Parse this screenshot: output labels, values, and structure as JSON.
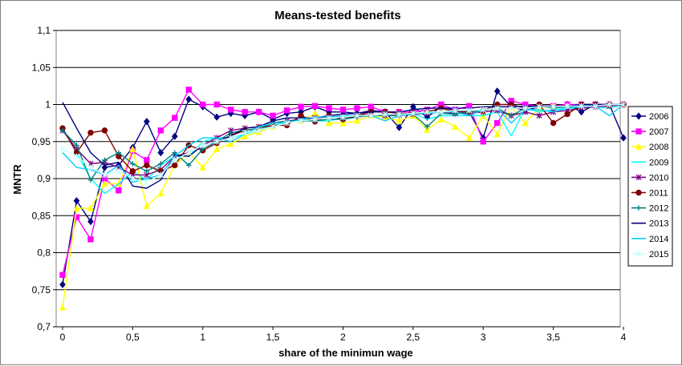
{
  "chart_data": {
    "type": "line",
    "title": "Means-tested benefits",
    "xlabel": "share of the minimun wage",
    "ylabel": "MNTR",
    "xlim": [
      0,
      4
    ],
    "ylim": [
      0.7,
      1.1
    ],
    "x_ticks": [
      "0",
      "0,5",
      "1",
      "1,5",
      "2",
      "2,5",
      "3",
      "3,5",
      "4"
    ],
    "x_tick_values": [
      0,
      0.5,
      1,
      1.5,
      2,
      2.5,
      3,
      3.5,
      4
    ],
    "y_ticks": [
      "0,7",
      "0,75",
      "0,8",
      "0,85",
      "0,9",
      "0,95",
      "1",
      "1,05",
      "1,1"
    ],
    "y_tick_values": [
      0.7,
      0.75,
      0.8,
      0.85,
      0.9,
      0.95,
      1.0,
      1.05,
      1.1
    ],
    "grid": "horizontal",
    "legend_position": "right",
    "plot_background": "#ffffff",
    "x": [
      0,
      0.1,
      0.2,
      0.3,
      0.4,
      0.5,
      0.6,
      0.7,
      0.8,
      0.9,
      1.0,
      1.1,
      1.2,
      1.3,
      1.4,
      1.5,
      1.6,
      1.7,
      1.8,
      1.9,
      2.0,
      2.1,
      2.2,
      2.3,
      2.4,
      2.5,
      2.6,
      2.7,
      2.8,
      2.9,
      3.0,
      3.1,
      3.2,
      3.3,
      3.4,
      3.5,
      3.6,
      3.7,
      3.8,
      3.9,
      4.0
    ],
    "series": [
      {
        "name": "2006",
        "color": "#000080",
        "marker": "diamond",
        "values": [
          0.757,
          0.87,
          0.842,
          0.915,
          0.918,
          0.942,
          0.977,
          0.935,
          0.957,
          1.007,
          0.997,
          0.983,
          0.988,
          0.985,
          0.99,
          0.98,
          0.988,
          0.99,
          0.997,
          0.99,
          0.99,
          0.988,
          0.992,
          0.99,
          0.969,
          0.997,
          0.983,
          0.997,
          0.992,
          0.99,
          0.955,
          1.018,
          0.997,
          0.992,
          0.997,
          0.997,
          1.0,
          0.99,
          1.0,
          1.0,
          0.955
        ]
      },
      {
        "name": "2007",
        "color": "#FF00FF",
        "marker": "square",
        "values": [
          0.77,
          0.848,
          0.818,
          0.9,
          0.884,
          0.937,
          0.925,
          0.965,
          0.982,
          1.02,
          1.0,
          1.0,
          0.993,
          0.99,
          0.99,
          0.985,
          0.992,
          0.997,
          0.998,
          0.995,
          0.993,
          0.995,
          0.997,
          0.99,
          0.99,
          0.99,
          0.993,
          1.0,
          0.993,
          0.998,
          0.95,
          0.975,
          1.005,
          1.0,
          0.998,
          0.998,
          1.0,
          1.0,
          1.0,
          1.0,
          1.0
        ]
      },
      {
        "name": "2008",
        "color": "#FFFF00",
        "marker": "triangle",
        "values": [
          0.726,
          0.86,
          0.86,
          0.893,
          0.893,
          0.94,
          0.863,
          0.88,
          0.918,
          0.935,
          0.915,
          0.94,
          0.947,
          0.957,
          0.963,
          0.97,
          0.975,
          0.978,
          0.988,
          0.975,
          0.975,
          0.978,
          0.985,
          0.983,
          0.978,
          0.985,
          0.966,
          0.98,
          0.97,
          0.955,
          0.985,
          0.96,
          0.997,
          0.975,
          0.995,
          0.998,
          0.998,
          0.997,
          1.0,
          1.0,
          1.0
        ]
      },
      {
        "name": "2009",
        "color": "#00FFFF",
        "marker": "none",
        "values": [
          0.968,
          0.935,
          0.9,
          0.88,
          0.893,
          0.91,
          0.898,
          0.918,
          0.93,
          0.93,
          0.95,
          0.955,
          0.955,
          0.96,
          0.965,
          0.972,
          0.975,
          0.98,
          0.978,
          0.978,
          0.982,
          0.985,
          0.985,
          0.987,
          0.985,
          0.988,
          0.98,
          0.985,
          0.985,
          0.985,
          0.985,
          0.99,
          0.958,
          0.995,
          0.99,
          0.993,
          0.995,
          0.995,
          0.997,
          0.995,
          1.0
        ]
      },
      {
        "name": "2010",
        "color": "#800080",
        "marker": "star",
        "values": [
          0.965,
          0.94,
          0.92,
          0.922,
          0.915,
          0.905,
          0.905,
          0.912,
          0.93,
          0.935,
          0.945,
          0.955,
          0.965,
          0.968,
          0.97,
          0.975,
          0.978,
          0.98,
          0.982,
          0.983,
          0.983,
          0.985,
          0.986,
          0.985,
          0.986,
          0.987,
          0.988,
          0.99,
          0.988,
          0.988,
          0.99,
          0.992,
          0.985,
          0.99,
          0.985,
          0.99,
          0.992,
          0.995,
          0.997,
          0.998,
          1.0
        ]
      },
      {
        "name": "2011",
        "color": "#800000",
        "marker": "circle",
        "values": [
          0.968,
          0.935,
          0.962,
          0.965,
          0.93,
          0.91,
          0.918,
          0.91,
          0.918,
          0.945,
          0.938,
          0.948,
          0.958,
          0.965,
          0.968,
          0.972,
          0.972,
          0.985,
          0.977,
          0.985,
          0.98,
          0.985,
          0.99,
          0.99,
          0.988,
          0.988,
          0.99,
          0.995,
          0.99,
          0.99,
          0.992,
          1.0,
          1.0,
          0.995,
          1.0,
          0.975,
          0.987,
          1.0,
          1.0,
          1.0,
          1.0
        ]
      },
      {
        "name": "2012",
        "color": "#008080",
        "marker": "plus",
        "values": [
          0.965,
          0.945,
          0.898,
          0.925,
          0.935,
          0.92,
          0.91,
          0.92,
          0.935,
          0.918,
          0.94,
          0.95,
          0.962,
          0.965,
          0.968,
          0.975,
          0.978,
          0.978,
          0.978,
          0.98,
          0.98,
          0.983,
          0.985,
          0.985,
          0.985,
          0.987,
          0.97,
          0.988,
          0.987,
          0.99,
          0.992,
          0.995,
          0.985,
          0.995,
          0.998,
          0.995,
          0.997,
          0.998,
          1.0,
          1.0,
          1.0
        ]
      },
      {
        "name": "2013",
        "color": "#000080",
        "marker": "none",
        "values": [
          1.003,
          0.968,
          0.935,
          0.918,
          0.922,
          0.89,
          0.887,
          0.898,
          0.932,
          0.93,
          0.945,
          0.95,
          0.958,
          0.968,
          0.97,
          0.978,
          0.982,
          0.982,
          0.982,
          0.985,
          0.987,
          0.988,
          0.99,
          0.99,
          0.99,
          0.993,
          0.995,
          0.995,
          0.995,
          0.995,
          0.997,
          0.997,
          0.997,
          0.998,
          0.998,
          0.998,
          0.998,
          1.0,
          1.0,
          1.0,
          1.0
        ]
      },
      {
        "name": "2014",
        "color": "#00CCFF",
        "marker": "none",
        "values": [
          0.935,
          0.915,
          0.912,
          0.905,
          0.918,
          0.895,
          0.9,
          0.905,
          0.93,
          0.945,
          0.955,
          0.955,
          0.95,
          0.96,
          0.97,
          0.975,
          0.975,
          0.98,
          0.983,
          0.983,
          0.985,
          0.985,
          0.985,
          0.978,
          0.985,
          0.988,
          0.988,
          0.99,
          0.99,
          0.985,
          0.993,
          0.995,
          0.975,
          0.993,
          0.993,
          0.99,
          0.995,
          0.997,
          0.998,
          0.985,
          1.0
        ]
      },
      {
        "name": "2015",
        "color": "#CCFFFF",
        "marker": "star",
        "values": [
          0.94,
          0.93,
          0.915,
          0.905,
          0.91,
          0.9,
          0.895,
          0.905,
          0.925,
          0.935,
          0.945,
          0.95,
          0.955,
          0.962,
          0.965,
          0.97,
          0.975,
          0.978,
          0.98,
          0.982,
          0.983,
          0.985,
          0.985,
          0.987,
          0.987,
          0.988,
          0.99,
          0.99,
          0.992,
          0.992,
          0.993,
          0.995,
          0.995,
          0.995,
          0.997,
          0.997,
          0.998,
          0.998,
          0.998,
          1.0,
          1.0
        ]
      }
    ]
  }
}
